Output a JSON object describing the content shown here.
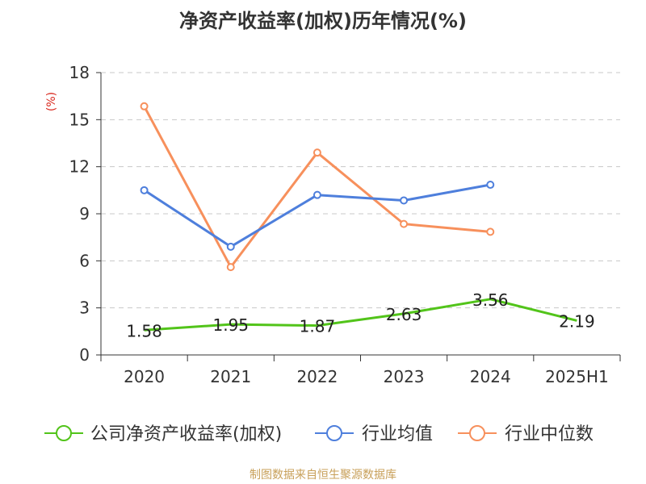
{
  "chart_data": {
    "type": "line",
    "title": "净资产收益率(加权)历年情况(%)",
    "ylabel": "(%)",
    "categories": [
      "2020",
      "2021",
      "2022",
      "2023",
      "2024",
      "2025H1"
    ],
    "ylim": [
      0,
      18
    ],
    "yticks": [
      0,
      3,
      6,
      9,
      12,
      15,
      18
    ],
    "grid": true,
    "legend_position": "bottom",
    "series": [
      {
        "name": "公司净资产收益率(加权)",
        "color": "#52c41a",
        "values": [
          1.58,
          1.95,
          1.87,
          2.63,
          3.56,
          2.19
        ],
        "labels": [
          "1.58",
          "1.95",
          "1.87",
          "2.63",
          "3.56",
          "2.19"
        ]
      },
      {
        "name": "行业均值",
        "color": "#4e7fdc",
        "values": [
          10.5,
          6.9,
          10.2,
          9.85,
          10.85,
          null
        ]
      },
      {
        "name": "行业中位数",
        "color": "#f7905c",
        "values": [
          15.85,
          5.6,
          12.9,
          8.35,
          7.85,
          null
        ]
      }
    ],
    "source": "制图数据来自恒生聚源数据库"
  }
}
